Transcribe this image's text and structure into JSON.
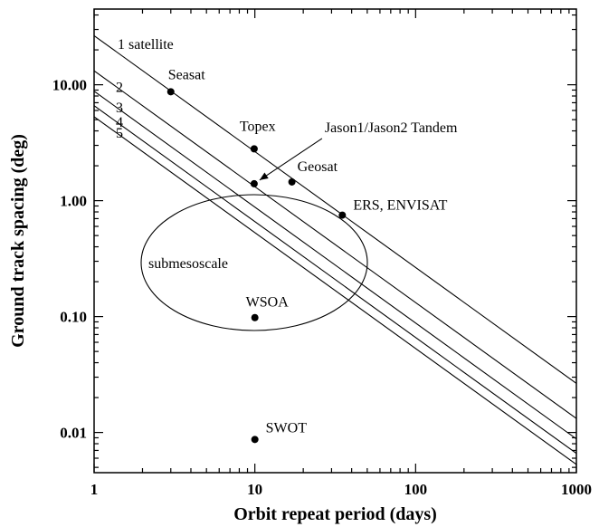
{
  "chart_data": {
    "type": "line",
    "xlabel": "Orbit repeat period (days)",
    "ylabel": "Ground track spacing (deg)",
    "x_scale": "log",
    "y_scale": "log",
    "xlim": [
      1,
      1000
    ],
    "ylim": [
      0.0045,
      45
    ],
    "x_ticks": [
      1,
      10,
      100,
      1000
    ],
    "x_tick_labels": [
      "1",
      "10",
      "100",
      "1000"
    ],
    "y_ticks": [
      0.01,
      0.1,
      1,
      10
    ],
    "y_tick_labels": [
      "0.01",
      "0.10",
      "1.00",
      "10.00"
    ],
    "grid": false,
    "legend": "none",
    "series": [
      {
        "name": "1 satellite",
        "x": [
          1,
          1000
        ],
        "y": [
          26.5,
          0.0265
        ]
      },
      {
        "name": "2",
        "x": [
          1,
          1000
        ],
        "y": [
          13.2,
          0.0132
        ]
      },
      {
        "name": "3",
        "x": [
          1,
          1000
        ],
        "y": [
          8.8,
          0.0088
        ]
      },
      {
        "name": "4",
        "x": [
          1,
          1000
        ],
        "y": [
          6.6,
          0.0066
        ]
      },
      {
        "name": "5",
        "x": [
          1,
          1000
        ],
        "y": [
          5.3,
          0.0053
        ]
      }
    ],
    "points": [
      {
        "label": "Seasat",
        "x": 3,
        "y": 8.7
      },
      {
        "label": "Topex",
        "x": 9.9,
        "y": 2.8
      },
      {
        "label": "Jason1/Jason2 Tandem",
        "x": 9.9,
        "y": 1.4
      },
      {
        "label": "Geosat",
        "x": 17,
        "y": 1.45
      },
      {
        "label": "ERS, ENVISAT",
        "x": 35,
        "y": 0.75
      },
      {
        "label": "WSOA",
        "x": 10,
        "y": 0.098
      },
      {
        "label": "SWOT",
        "x": 10,
        "y": 0.0087
      }
    ],
    "annotations": [
      {
        "text": "submesoscale",
        "type": "ellipse",
        "center_x": 7.1,
        "center_y": 0.3
      }
    ]
  }
}
